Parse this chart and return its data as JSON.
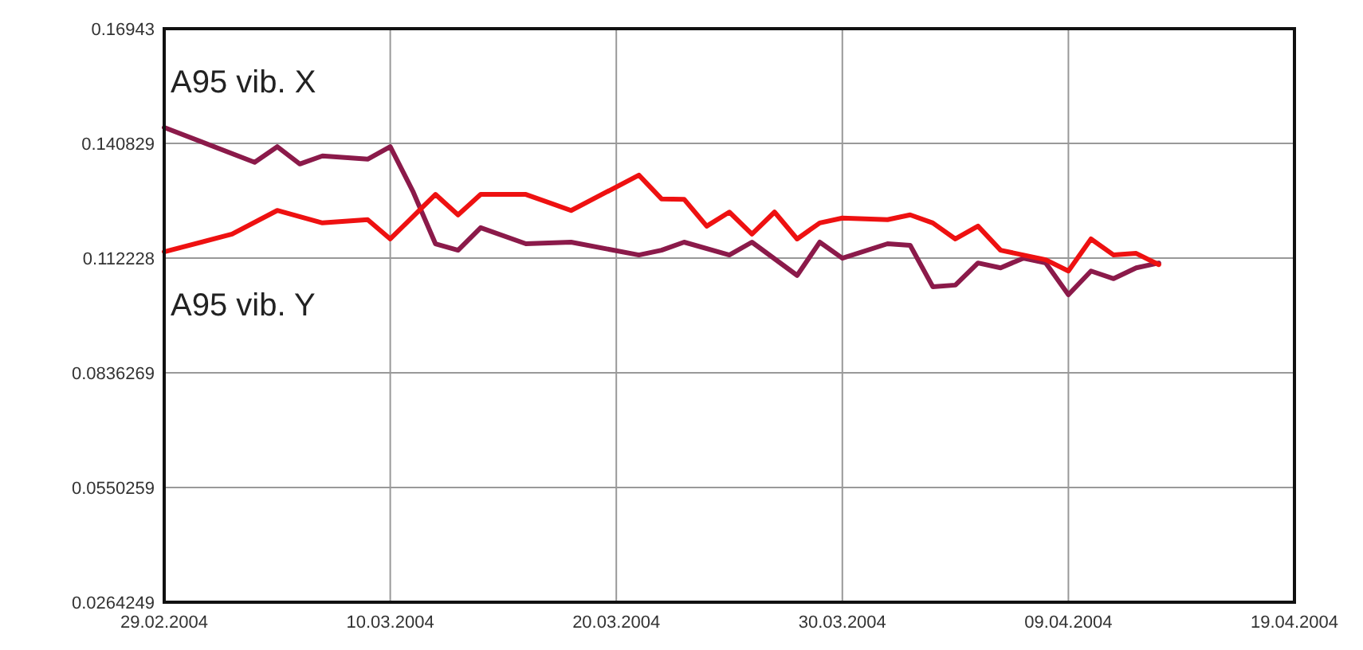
{
  "chart_data": {
    "type": "line",
    "grid": true,
    "line_style": "solid",
    "marker": "none",
    "xlim": [
      "2004-02-29",
      "2004-04-19"
    ],
    "xticks": [
      {
        "value": "2004-02-29",
        "label": "29.02.2004"
      },
      {
        "value": "2004-03-10",
        "label": "10.03.2004"
      },
      {
        "value": "2004-03-20",
        "label": "20.03.2004"
      },
      {
        "value": "2004-03-30",
        "label": "30.03.2004"
      },
      {
        "value": "2004-04-09",
        "label": "09.04.2004"
      },
      {
        "value": "2004-04-19",
        "label": "19.04.2004"
      }
    ],
    "ylim": [
      0.0264249,
      0.16943
    ],
    "yticks": [
      0.0264249,
      0.0550259,
      0.0836269,
      0.112228,
      0.140829,
      0.16943
    ],
    "series": [
      {
        "name": "A95 vib. X",
        "color": "#8b1a4a",
        "x": [
          "2004-02-29",
          "2004-03-04",
          "2004-03-05",
          "2004-03-06",
          "2004-03-07",
          "2004-03-09",
          "2004-03-10",
          "2004-03-11",
          "2004-03-12",
          "2004-03-13",
          "2004-03-14",
          "2004-03-16",
          "2004-03-18",
          "2004-03-21",
          "2004-03-22",
          "2004-03-23",
          "2004-03-25",
          "2004-03-26",
          "2004-03-28",
          "2004-03-29",
          "2004-03-30",
          "2004-04-01",
          "2004-04-02",
          "2004-04-03",
          "2004-04-04",
          "2004-04-05",
          "2004-04-06",
          "2004-04-07",
          "2004-04-08",
          "2004-04-09",
          "2004-04-10",
          "2004-04-11",
          "2004-04-12",
          "2004-04-13"
        ],
        "values": [
          0.1448,
          0.1361,
          0.14,
          0.1357,
          0.1377,
          0.1369,
          0.14,
          0.1289,
          0.1158,
          0.1142,
          0.1198,
          0.1158,
          0.1162,
          0.113,
          0.1142,
          0.1162,
          0.113,
          0.1162,
          0.1079,
          0.1162,
          0.1122,
          0.1158,
          0.1154,
          0.1051,
          0.1055,
          0.111,
          0.1098,
          0.1122,
          0.111,
          0.1031,
          0.109,
          0.1071,
          0.1098,
          0.111
        ]
      },
      {
        "name": "A95 vib. Y",
        "color": "#ee1111",
        "x": [
          "2004-02-29",
          "2004-03-03",
          "2004-03-05",
          "2004-03-07",
          "2004-03-09",
          "2004-03-10",
          "2004-03-12",
          "2004-03-13",
          "2004-03-14",
          "2004-03-16",
          "2004-03-18",
          "2004-03-21",
          "2004-03-22",
          "2004-03-23",
          "2004-03-24",
          "2004-03-25",
          "2004-03-26",
          "2004-03-27",
          "2004-03-28",
          "2004-03-29",
          "2004-03-30",
          "2004-04-01",
          "2004-04-02",
          "2004-04-03",
          "2004-04-04",
          "2004-04-05",
          "2004-04-06",
          "2004-04-08",
          "2004-04-09",
          "2004-04-10",
          "2004-04-11",
          "2004-04-12",
          "2004-04-13"
        ],
        "values": [
          0.1138,
          0.1182,
          0.1241,
          0.121,
          0.1218,
          0.117,
          0.1281,
          0.123,
          0.1281,
          0.1281,
          0.1241,
          0.1329,
          0.127,
          0.1269,
          0.1202,
          0.1237,
          0.1182,
          0.1237,
          0.117,
          0.121,
          0.1222,
          0.1218,
          0.123,
          0.121,
          0.117,
          0.1202,
          0.1142,
          0.1118,
          0.109,
          0.117,
          0.113,
          0.1134,
          0.1106
        ]
      }
    ]
  }
}
